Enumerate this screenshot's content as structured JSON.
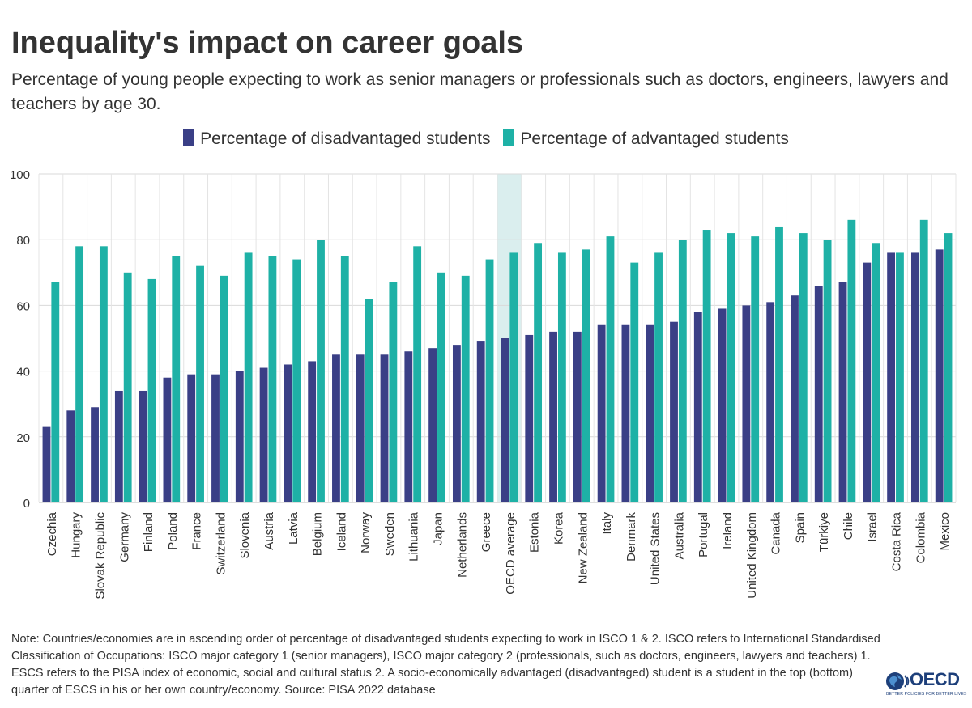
{
  "title": "Inequality's impact on career goals",
  "subtitle": "Percentage of young people expecting to work as senior managers or professionals such as doctors, engineers, lawyers and teachers by age 30.",
  "note": "Note: Countries/economies are in ascending order of percentage of disadvantaged students expecting to work in ISCO 1 & 2. ISCO refers to International Standardised Classification of Occupations: ISCO major category 1 (senior managers), ISCO major category 2 (professionals, such as doctors, engineers, lawyers and teachers) 1. ESCS refers to the PISA index of economic, social and cultural status 2. A socio-economically advantaged (disadvantaged) student is a student in the top (bottom) quarter of ESCS in his or her own country/economy. Source: PISA 2022 database",
  "logo": {
    "name": "OECD",
    "tagline": "BETTER POLICIES FOR BETTER LIVES"
  },
  "colors": {
    "disadvantaged": "#3a3f86",
    "advantaged": "#1eb1a6",
    "highlight": "#daeeee"
  },
  "chart_data": {
    "type": "bar",
    "title": "Inequality's impact on career goals",
    "xlabel": "",
    "ylabel": "",
    "ylim": [
      0,
      100
    ],
    "yticks": [
      0,
      20,
      40,
      60,
      80,
      100
    ],
    "grid": true,
    "legend_position": "top",
    "highlight_category": "OECD average",
    "categories": [
      "Czechia",
      "Hungary",
      "Slovak Republic",
      "Germany",
      "Finland",
      "Poland",
      "France",
      "Switzerland",
      "Slovenia",
      "Austria",
      "Latvia",
      "Belgium",
      "Iceland",
      "Norway",
      "Sweden",
      "Lithuania",
      "Japan",
      "Netherlands",
      "Greece",
      "OECD average",
      "Estonia",
      "Korea",
      "New Zealand",
      "Italy",
      "Denmark",
      "United States",
      "Australia",
      "Portugal",
      "Ireland",
      "United Kingdom",
      "Canada",
      "Spain",
      "Türkiye",
      "Chile",
      "Israel",
      "Costa Rica",
      "Colombia",
      "Mexico"
    ],
    "series": [
      {
        "name": "Percentage of disadvantaged students",
        "color": "#3a3f86",
        "values": [
          23,
          28,
          29,
          34,
          34,
          38,
          39,
          39,
          40,
          41,
          42,
          43,
          45,
          45,
          45,
          46,
          47,
          48,
          49,
          50,
          51,
          52,
          52,
          54,
          54,
          54,
          55,
          58,
          59,
          60,
          61,
          63,
          66,
          67,
          73,
          76,
          76,
          77
        ]
      },
      {
        "name": "Percentage of advantaged students",
        "color": "#1eb1a6",
        "values": [
          67,
          78,
          78,
          70,
          68,
          75,
          72,
          69,
          76,
          75,
          74,
          80,
          75,
          62,
          67,
          78,
          70,
          69,
          74,
          76,
          79,
          76,
          77,
          81,
          73,
          76,
          80,
          83,
          82,
          81,
          84,
          82,
          80,
          86,
          79,
          76,
          86,
          82
        ]
      }
    ]
  }
}
